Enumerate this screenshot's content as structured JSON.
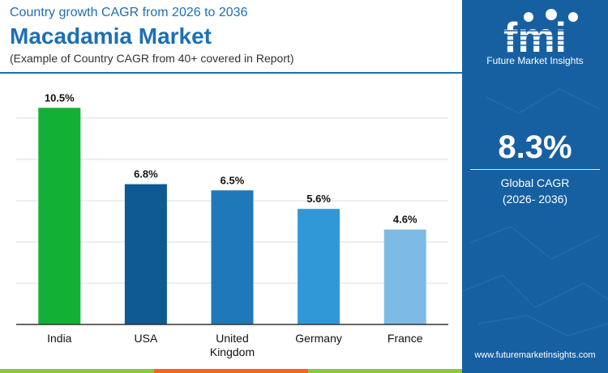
{
  "header": {
    "kicker": "Country growth CAGR from 2026 to 2036",
    "title": "Macadamia Market",
    "subtitle": "(Example of Country CAGR from 40+ covered in Report)"
  },
  "panel": {
    "logo_text": "fmi",
    "logo_tagline": "Future Market Insights",
    "global_value": "8.3%",
    "global_label": "Global CAGR",
    "global_period": "(2026- 2036)",
    "website": "www.futuremarketinsights.com",
    "background_color": "#1660a2"
  },
  "chart_data": {
    "type": "bar",
    "categories": [
      [
        "India"
      ],
      [
        "USA"
      ],
      [
        "United",
        "Kingdom"
      ],
      [
        "Germany"
      ],
      [
        "France"
      ]
    ],
    "values": [
      10.5,
      6.8,
      6.5,
      5.6,
      4.6
    ],
    "value_labels": [
      "10.5%",
      "6.8%",
      "6.5%",
      "5.6%",
      "4.6%"
    ],
    "colors": [
      "#12b136",
      "#0e5a93",
      "#1f78b8",
      "#3198d8",
      "#7dbbe4"
    ],
    "ylim": [
      0,
      12
    ],
    "gridlines": [
      2,
      4,
      6,
      8,
      10
    ],
    "grid": true,
    "title": "",
    "xlabel": "",
    "ylabel": ""
  }
}
